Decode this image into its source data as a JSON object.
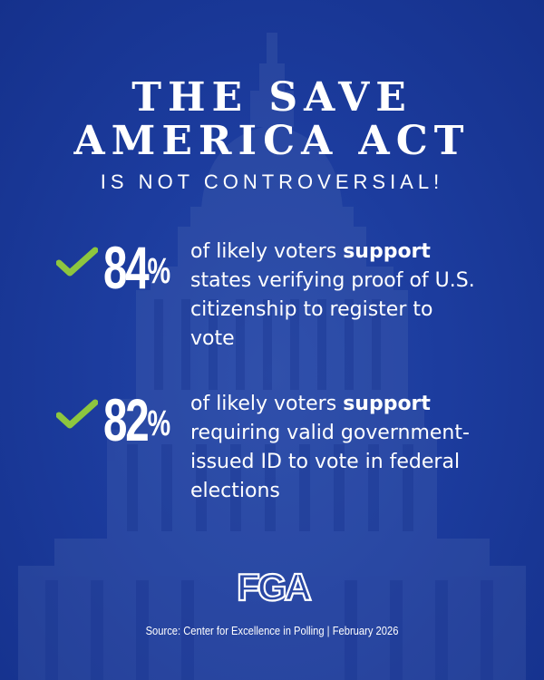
{
  "title": {
    "line1": "THE SAVE",
    "line2": "AMERICA ACT",
    "subtitle": "IS NOT CONTROVERSIAL!"
  },
  "stats": [
    {
      "number": "84",
      "symbol": "%",
      "pre": "of likely voters ",
      "bold": "support",
      "post": " states verifying proof of U.S. citizenship to register to vote"
    },
    {
      "number": "82",
      "symbol": "%",
      "pre": "of likely voters ",
      "bold": "support",
      "post": " requiring valid government-issued ID to vote in federal elections"
    }
  ],
  "logo": {
    "text": "FGA"
  },
  "source": "Source: Center for Excellence in Polling | February 2026",
  "colors": {
    "background": "#1c3c9e",
    "text": "#ffffff",
    "check": "#8dc63f"
  },
  "icons": {
    "check": "check-icon",
    "background": "capitol-building"
  }
}
